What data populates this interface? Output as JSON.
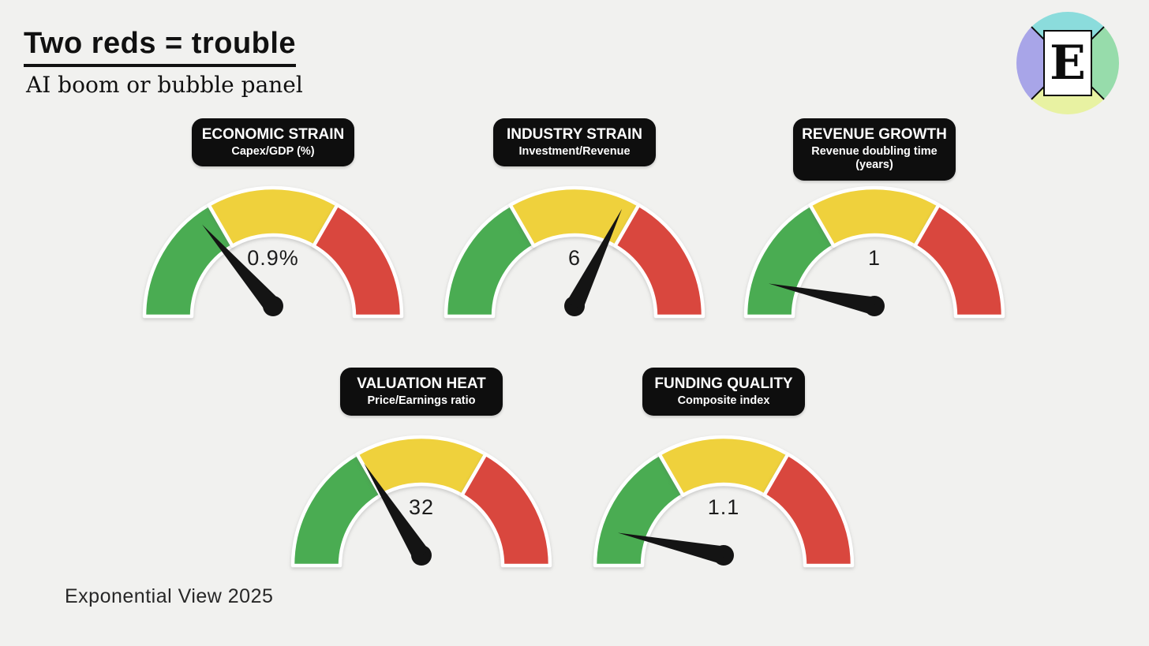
{
  "page": {
    "background": "#f1f1ef"
  },
  "header": {
    "title": "Two reds = trouble",
    "subtitle": "AI boom or bubble panel"
  },
  "logo": {
    "letter": "E",
    "colors": {
      "top": "#8bdcdc",
      "right": "#97dcab",
      "bottom": "#e8f2a2",
      "left": "#a8a5e8"
    }
  },
  "colors": {
    "green": "#4aac52",
    "yellow": "#efd13c",
    "red": "#d9473e",
    "needle": "#141414",
    "badge_bg": "#0e0e0e",
    "badge_text": "#ffffff",
    "value_text": "#1c1c1c",
    "background": "#f1f1ef"
  },
  "footer": {
    "credit": "Exponential View 2025"
  },
  "chart_data": [
    {
      "type": "gauge",
      "id": "economic-strain",
      "title": "ECONOMIC STRAIN",
      "subtitle": "Capex/GDP (%)",
      "value": 0.9,
      "value_label": "0.9%",
      "needle_angle_deg": 131,
      "needle_zone": "green",
      "segments": [
        {
          "name": "green",
          "from_deg": 180,
          "to_deg": 120
        },
        {
          "name": "yellow",
          "from_deg": 120,
          "to_deg": 60
        },
        {
          "name": "red",
          "from_deg": 60,
          "to_deg": 0
        }
      ]
    },
    {
      "type": "gauge",
      "id": "industry-strain",
      "title": "INDUSTRY STRAIN",
      "subtitle": "Investment/Revenue",
      "value": 6,
      "value_label": "6",
      "needle_angle_deg": 64,
      "needle_zone": "yellow",
      "segments": [
        {
          "name": "green",
          "from_deg": 180,
          "to_deg": 120
        },
        {
          "name": "yellow",
          "from_deg": 120,
          "to_deg": 60
        },
        {
          "name": "red",
          "from_deg": 60,
          "to_deg": 0
        }
      ]
    },
    {
      "type": "gauge",
      "id": "revenue-growth",
      "title": "REVENUE GROWTH",
      "subtitle": "Revenue doubling time (years)",
      "value": 1,
      "value_label": "1",
      "needle_angle_deg": 168,
      "needle_zone": "green",
      "segments": [
        {
          "name": "green",
          "from_deg": 180,
          "to_deg": 120
        },
        {
          "name": "yellow",
          "from_deg": 120,
          "to_deg": 60
        },
        {
          "name": "red",
          "from_deg": 60,
          "to_deg": 0
        }
      ]
    },
    {
      "type": "gauge",
      "id": "valuation-heat",
      "title": "VALUATION HEAT",
      "subtitle": "Price/Earnings ratio",
      "value": 32,
      "value_label": "32",
      "needle_angle_deg": 122,
      "needle_zone": "green-yellow boundary",
      "segments": [
        {
          "name": "green",
          "from_deg": 180,
          "to_deg": 120
        },
        {
          "name": "yellow",
          "from_deg": 120,
          "to_deg": 60
        },
        {
          "name": "red",
          "from_deg": 60,
          "to_deg": 0
        }
      ]
    },
    {
      "type": "gauge",
      "id": "funding-quality",
      "title": "FUNDING QUALITY",
      "subtitle": "Composite index",
      "value": 1.1,
      "value_label": "1.1",
      "needle_angle_deg": 168,
      "needle_zone": "green",
      "segments": [
        {
          "name": "green",
          "from_deg": 180,
          "to_deg": 120
        },
        {
          "name": "yellow",
          "from_deg": 120,
          "to_deg": 60
        },
        {
          "name": "red",
          "from_deg": 60,
          "to_deg": 0
        }
      ]
    }
  ]
}
